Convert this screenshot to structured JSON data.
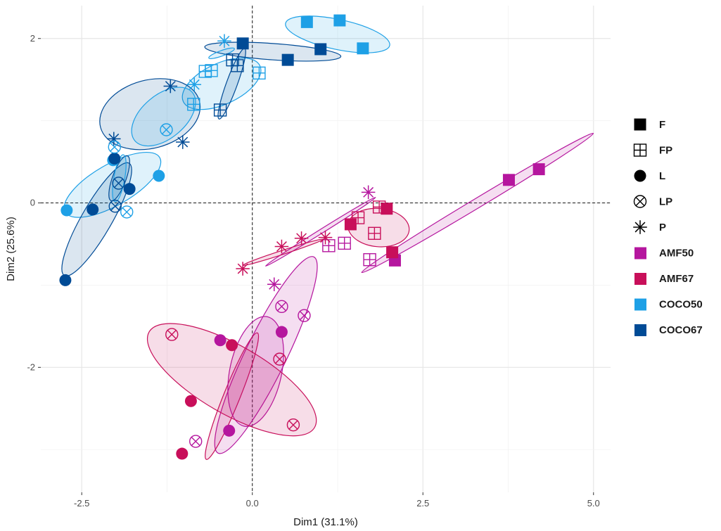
{
  "chart_data": {
    "type": "scatter",
    "title": "",
    "xlabel": "Dim1 (31.1%)",
    "ylabel": "Dim2 (25.6%)",
    "xlim": [
      -3.1,
      5.25
    ],
    "ylim": [
      -3.52,
      2.4
    ],
    "xticks": [
      -2.5,
      0.0,
      2.5,
      5.0
    ],
    "xtick_labels": [
      "-2.5",
      "0.0",
      "2.5",
      "5.0"
    ],
    "yticks": [
      -2,
      0,
      2
    ],
    "ytick_labels": [
      "-2",
      "0",
      "2"
    ],
    "grid": true,
    "reference_lines": {
      "x": 0,
      "y": 0,
      "style": "dashed"
    },
    "legend_position": "right",
    "shape_legend": [
      {
        "label": "F",
        "shape": "filled-square"
      },
      {
        "label": "FP",
        "shape": "square-plus"
      },
      {
        "label": "L",
        "shape": "filled-circle"
      },
      {
        "label": "LP",
        "shape": "circle-x"
      },
      {
        "label": "P",
        "shape": "asterisk"
      }
    ],
    "color_legend": [
      {
        "label": "AMF50",
        "color": "#b5169e"
      },
      {
        "label": "AMF67",
        "color": "#c80f5a"
      },
      {
        "label": "COCO50",
        "color": "#1ea0e6"
      },
      {
        "label": "COCO67",
        "color": "#004b96"
      }
    ],
    "points": [
      {
        "x": 0.8,
        "y": 2.2,
        "group": "COCO50",
        "shape": "F"
      },
      {
        "x": 1.28,
        "y": 2.22,
        "group": "COCO50",
        "shape": "F"
      },
      {
        "x": 1.62,
        "y": 1.88,
        "group": "COCO50",
        "shape": "F"
      },
      {
        "x": -0.14,
        "y": 1.94,
        "group": "COCO67",
        "shape": "F"
      },
      {
        "x": 0.52,
        "y": 1.74,
        "group": "COCO67",
        "shape": "F"
      },
      {
        "x": 1.0,
        "y": 1.87,
        "group": "COCO67",
        "shape": "F"
      },
      {
        "x": -0.6,
        "y": 1.61,
        "group": "COCO50",
        "shape": "FP"
      },
      {
        "x": -0.69,
        "y": 1.6,
        "group": "COCO50",
        "shape": "FP"
      },
      {
        "x": 0.1,
        "y": 1.58,
        "group": "COCO50",
        "shape": "FP"
      },
      {
        "x": -0.86,
        "y": 1.2,
        "group": "COCO50",
        "shape": "FP"
      },
      {
        "x": -0.29,
        "y": 1.74,
        "group": "COCO67",
        "shape": "FP"
      },
      {
        "x": -0.22,
        "y": 1.67,
        "group": "COCO67",
        "shape": "FP"
      },
      {
        "x": -0.47,
        "y": 1.13,
        "group": "COCO67",
        "shape": "FP"
      },
      {
        "x": -0.41,
        "y": 1.97,
        "group": "COCO50",
        "shape": "P"
      },
      {
        "x": -0.85,
        "y": 1.44,
        "group": "COCO50",
        "shape": "P"
      },
      {
        "x": -1.2,
        "y": 1.42,
        "group": "COCO67",
        "shape": "P"
      },
      {
        "x": -2.03,
        "y": 0.78,
        "group": "COCO67",
        "shape": "P"
      },
      {
        "x": -1.02,
        "y": 0.74,
        "group": "COCO67",
        "shape": "P"
      },
      {
        "x": -2.72,
        "y": -0.09,
        "group": "COCO50",
        "shape": "L"
      },
      {
        "x": -2.04,
        "y": 0.52,
        "group": "COCO50",
        "shape": "L"
      },
      {
        "x": -1.37,
        "y": 0.33,
        "group": "COCO50",
        "shape": "L"
      },
      {
        "x": -2.34,
        "y": -0.08,
        "group": "COCO67",
        "shape": "L"
      },
      {
        "x": -1.8,
        "y": 0.17,
        "group": "COCO67",
        "shape": "L"
      },
      {
        "x": -2.74,
        "y": -0.94,
        "group": "COCO67",
        "shape": "L"
      },
      {
        "x": -2.02,
        "y": 0.54,
        "group": "COCO67",
        "shape": "L"
      },
      {
        "x": -1.26,
        "y": 0.89,
        "group": "COCO50",
        "shape": "LP"
      },
      {
        "x": -2.02,
        "y": 0.68,
        "group": "COCO50",
        "shape": "LP"
      },
      {
        "x": -1.96,
        "y": 0.24,
        "group": "COCO67",
        "shape": "LP"
      },
      {
        "x": -2.01,
        "y": -0.04,
        "group": "COCO67",
        "shape": "LP"
      },
      {
        "x": -1.84,
        "y": -0.11,
        "group": "COCO50",
        "shape": "LP"
      },
      {
        "x": 3.76,
        "y": 0.28,
        "group": "AMF50",
        "shape": "F"
      },
      {
        "x": 4.2,
        "y": 0.41,
        "group": "AMF50",
        "shape": "F"
      },
      {
        "x": 2.09,
        "y": -0.7,
        "group": "AMF50",
        "shape": "F"
      },
      {
        "x": 1.44,
        "y": -0.26,
        "group": "AMF67",
        "shape": "F"
      },
      {
        "x": 1.97,
        "y": -0.07,
        "group": "AMF67",
        "shape": "F"
      },
      {
        "x": 2.05,
        "y": -0.6,
        "group": "AMF67",
        "shape": "F"
      },
      {
        "x": 1.12,
        "y": -0.52,
        "group": "AMF50",
        "shape": "FP"
      },
      {
        "x": 1.35,
        "y": -0.49,
        "group": "AMF50",
        "shape": "FP"
      },
      {
        "x": 1.72,
        "y": -0.69,
        "group": "AMF50",
        "shape": "FP"
      },
      {
        "x": 1.55,
        "y": -0.18,
        "group": "AMF67",
        "shape": "FP"
      },
      {
        "x": 1.86,
        "y": -0.05,
        "group": "AMF67",
        "shape": "FP"
      },
      {
        "x": 1.79,
        "y": -0.37,
        "group": "AMF67",
        "shape": "FP"
      },
      {
        "x": 1.7,
        "y": 0.13,
        "group": "AMF50",
        "shape": "P"
      },
      {
        "x": 0.32,
        "y": -0.99,
        "group": "AMF50",
        "shape": "P"
      },
      {
        "x": -0.14,
        "y": -0.8,
        "group": "AMF67",
        "shape": "P"
      },
      {
        "x": 0.43,
        "y": -0.53,
        "group": "AMF67",
        "shape": "P"
      },
      {
        "x": 0.72,
        "y": -0.43,
        "group": "AMF67",
        "shape": "P"
      },
      {
        "x": 1.07,
        "y": -0.42,
        "group": "AMF67",
        "shape": "P"
      },
      {
        "x": -0.47,
        "y": -1.67,
        "group": "AMF50",
        "shape": "L"
      },
      {
        "x": 0.43,
        "y": -1.57,
        "group": "AMF50",
        "shape": "L"
      },
      {
        "x": -0.34,
        "y": -2.77,
        "group": "AMF50",
        "shape": "L"
      },
      {
        "x": -0.3,
        "y": -1.73,
        "group": "AMF67",
        "shape": "L"
      },
      {
        "x": -0.9,
        "y": -2.41,
        "group": "AMF67",
        "shape": "L"
      },
      {
        "x": -1.03,
        "y": -3.05,
        "group": "AMF67",
        "shape": "L"
      },
      {
        "x": 0.43,
        "y": -1.26,
        "group": "AMF50",
        "shape": "LP"
      },
      {
        "x": 0.76,
        "y": -1.37,
        "group": "AMF50",
        "shape": "LP"
      },
      {
        "x": -0.83,
        "y": -2.9,
        "group": "AMF50",
        "shape": "LP"
      },
      {
        "x": -1.18,
        "y": -1.6,
        "group": "AMF67",
        "shape": "LP"
      },
      {
        "x": 0.4,
        "y": -1.9,
        "group": "AMF67",
        "shape": "LP"
      },
      {
        "x": 0.6,
        "y": -2.7,
        "group": "AMF67",
        "shape": "LP"
      }
    ],
    "ellipses": [
      {
        "group": "COCO50",
        "cx": 1.25,
        "cy": 2.05,
        "rx": 0.78,
        "ry": 0.22,
        "angle": -12
      },
      {
        "group": "COCO67",
        "cx": 0.3,
        "cy": 1.84,
        "rx": 1.0,
        "ry": 0.12,
        "angle": -4
      },
      {
        "group": "COCO50",
        "cx": -0.45,
        "cy": 1.45,
        "rx": 0.62,
        "ry": 0.3,
        "angle": 25
      },
      {
        "group": "COCO67",
        "cx": -0.3,
        "cy": 1.45,
        "rx": 0.55,
        "ry": 0.08,
        "angle": 70
      },
      {
        "group": "COCO50",
        "cx": -0.45,
        "cy": 1.82,
        "rx": 0.2,
        "ry": 0.04,
        "angle": 20
      },
      {
        "group": "COCO67",
        "cx": -1.5,
        "cy": 1.08,
        "rx": 0.75,
        "ry": 0.5,
        "angle": 15
      },
      {
        "group": "COCO50",
        "cx": -1.3,
        "cy": 1.05,
        "rx": 0.55,
        "ry": 0.32,
        "angle": 40
      },
      {
        "group": "COCO50",
        "cx": -2.05,
        "cy": 0.22,
        "rx": 0.8,
        "ry": 0.3,
        "angle": 30
      },
      {
        "group": "COCO67",
        "cx": -2.28,
        "cy": -0.2,
        "rx": 0.95,
        "ry": 0.22,
        "angle": 60
      },
      {
        "group": "COCO67",
        "cx": -1.95,
        "cy": 0.3,
        "rx": 0.35,
        "ry": 0.1,
        "angle": 70
      },
      {
        "group": "COCO50",
        "cx": -1.95,
        "cy": 0.3,
        "rx": 0.35,
        "ry": 0.08,
        "angle": 80
      },
      {
        "group": "AMF50",
        "cx": 3.3,
        "cy": 0.0,
        "rx": 1.98,
        "ry": 0.07,
        "angle": 31
      },
      {
        "group": "AMF67",
        "cx": 1.85,
        "cy": -0.3,
        "rx": 0.45,
        "ry": 0.28,
        "angle": -5
      },
      {
        "group": "AMF50",
        "cx": 1.0,
        "cy": -0.35,
        "rx": 0.95,
        "ry": 0.03,
        "angle": 32
      },
      {
        "group": "AMF67",
        "cx": 0.45,
        "cy": -0.6,
        "rx": 0.62,
        "ry": 0.03,
        "angle": 18
      },
      {
        "group": "AMF50",
        "cx": 0.2,
        "cy": -1.85,
        "rx": 1.6,
        "ry": 0.3,
        "angle": 64
      },
      {
        "group": "AMF67",
        "cx": -0.3,
        "cy": -2.35,
        "rx": 1.0,
        "ry": 0.12,
        "angle": 68
      },
      {
        "group": "AMF50",
        "cx": 0.05,
        "cy": -2.05,
        "rx": 0.82,
        "ry": 0.38,
        "angle": 78
      },
      {
        "group": "AMF67",
        "cx": -0.3,
        "cy": -2.15,
        "rx": 1.4,
        "ry": 0.5,
        "angle": -30
      }
    ]
  }
}
